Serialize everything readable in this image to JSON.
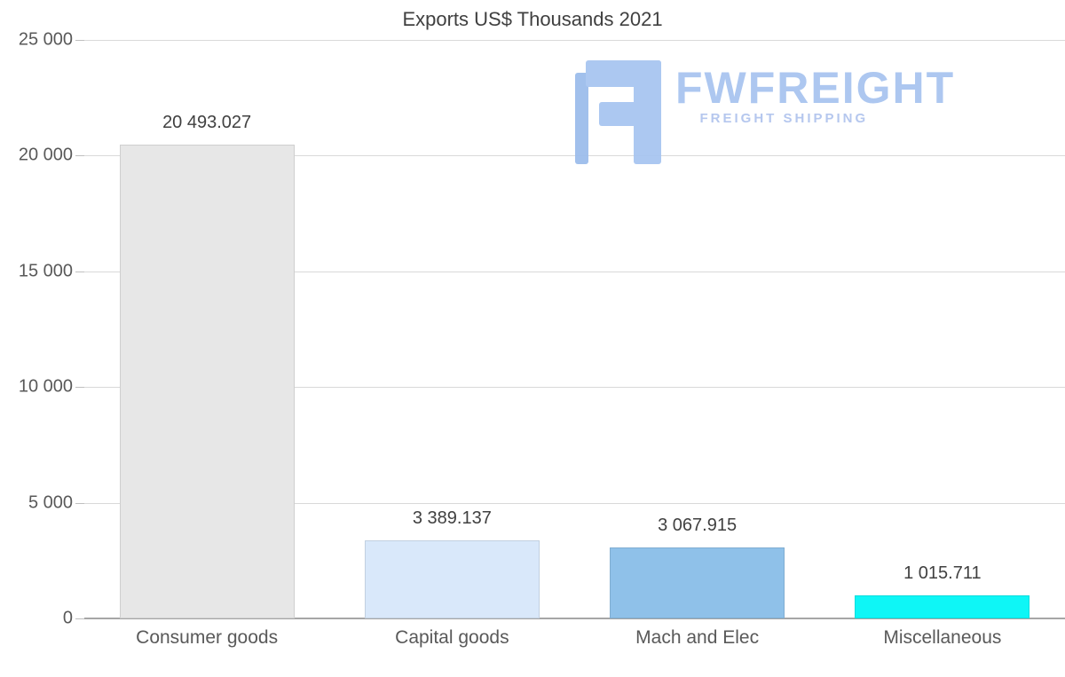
{
  "chart_data": {
    "type": "bar",
    "title": "Exports US$ Thousands 2021",
    "categories": [
      "Consumer goods",
      "Capital goods",
      "Mach and Elec",
      "Miscellaneous"
    ],
    "values": [
      20493.027,
      3389.137,
      3067.915,
      1015.711
    ],
    "value_labels": [
      "20 493.027",
      "3 389.137",
      "3 067.915",
      "1 015.711"
    ],
    "bar_colors": [
      "#e7e7e7",
      "#d9e8fa",
      "#8fc1e9",
      "#0ef6f6"
    ],
    "xlabel": "",
    "ylabel": "",
    "ylim": [
      0,
      25000
    ],
    "ytick_values": [
      0,
      5000,
      10000,
      15000,
      20000,
      25000
    ],
    "ytick_labels": [
      "0",
      "5 000",
      "10 000",
      "15 000",
      "20 000",
      "25 000"
    ],
    "grid": true,
    "legend": false,
    "grid_color": "#d9d9d9",
    "axis_color": "#a6a6a6"
  },
  "watermark": {
    "brand": "FWFREIGHT",
    "tagline": "FREIGHT SHIPPING",
    "color": "#a9c5f0"
  }
}
